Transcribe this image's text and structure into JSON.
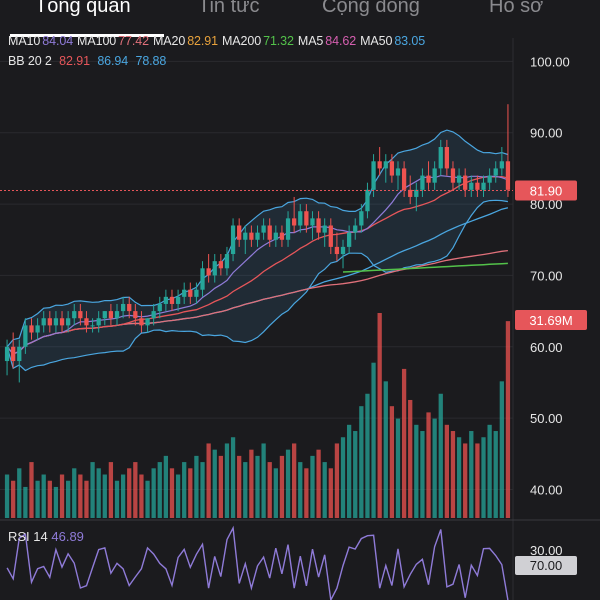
{
  "tabs": [
    {
      "label": "Tổng quan",
      "active": true
    },
    {
      "label": "Tin tức",
      "active": false
    },
    {
      "label": "Cộng đồng",
      "active": false
    },
    {
      "label": "Hồ sơ",
      "active": false
    }
  ],
  "legend": {
    "ma": [
      {
        "label": "MA10",
        "value": "84.04",
        "color": "#8f7bd8"
      },
      {
        "label": "MA100",
        "value": "77.42",
        "color": "#e0707a"
      },
      {
        "label": "MA20",
        "value": "82.91",
        "color": "#e8a23c"
      },
      {
        "label": "MA200",
        "value": "71.32",
        "color": "#53c24a"
      },
      {
        "label": "MA5",
        "value": "84.62",
        "color": "#d65fb0"
      },
      {
        "label": "MA50",
        "value": "83.05",
        "color": "#4aa6e0"
      }
    ],
    "bb": {
      "label": "BB 20 2",
      "values": [
        {
          "value": "82.91",
          "color": "#e6565a"
        },
        {
          "value": "86.94",
          "color": "#4aa6e0"
        },
        {
          "value": "78.88",
          "color": "#4aa6e0"
        }
      ]
    }
  },
  "price_axis": {
    "ticks": [
      "100.00",
      "90.00",
      "80.00",
      "70.00",
      "60.00",
      "50.00",
      "40.00"
    ]
  },
  "last_price": {
    "label": "81.90",
    "value": 81.9,
    "color": "#e6565a"
  },
  "volume_badge": {
    "label": "31.69M",
    "color": "#e6565a"
  },
  "rsi": {
    "label": "RSI 14",
    "value": "46.89",
    "value_color": "#8f7bd8",
    "axis_ticks": [
      "30.00"
    ],
    "badge": "70.00"
  },
  "colors": {
    "up": "#26a69a",
    "down": "#ef5350",
    "bg": "#1b1b1e",
    "grid": "#2a2a2e"
  },
  "chart_data": {
    "type": "candlestick",
    "ylim": [
      36,
      103
    ],
    "candles": [
      [
        58,
        61,
        56,
        60
      ],
      [
        60,
        62,
        57,
        58
      ],
      [
        58,
        61,
        55,
        60
      ],
      [
        60,
        64,
        59,
        63
      ],
      [
        63,
        64,
        61,
        62
      ],
      [
        62,
        64,
        61,
        63
      ],
      [
        63,
        65,
        62,
        64
      ],
      [
        64,
        65,
        62,
        63
      ],
      [
        63,
        65,
        62,
        64
      ],
      [
        64,
        65,
        62,
        63
      ],
      [
        63,
        65,
        62,
        64
      ],
      [
        64,
        66,
        63,
        65
      ],
      [
        65,
        66,
        63,
        64
      ],
      [
        64,
        65,
        62,
        63
      ],
      [
        63,
        64,
        62,
        63
      ],
      [
        63,
        65,
        62,
        64
      ],
      [
        64,
        65,
        63,
        65
      ],
      [
        65,
        66,
        63,
        64
      ],
      [
        64,
        66,
        63,
        65
      ],
      [
        65,
        67,
        64,
        66
      ],
      [
        66,
        67,
        64,
        65
      ],
      [
        65,
        66,
        63,
        64
      ],
      [
        64,
        65,
        62,
        63
      ],
      [
        63,
        64,
        62,
        64
      ],
      [
        64,
        66,
        63,
        65
      ],
      [
        65,
        67,
        64,
        66
      ],
      [
        66,
        68,
        65,
        67
      ],
      [
        67,
        68,
        65,
        66
      ],
      [
        66,
        68,
        65,
        67
      ],
      [
        67,
        69,
        66,
        68
      ],
      [
        68,
        69,
        66,
        67
      ],
      [
        67,
        69,
        66,
        68
      ],
      [
        68,
        72,
        67,
        71
      ],
      [
        71,
        73,
        69,
        70
      ],
      [
        70,
        73,
        69,
        72
      ],
      [
        72,
        73,
        70,
        71
      ],
      [
        71,
        74,
        70,
        73
      ],
      [
        73,
        78,
        72,
        77
      ],
      [
        77,
        78,
        74,
        75
      ],
      [
        75,
        77,
        73,
        76
      ],
      [
        76,
        77,
        74,
        75
      ],
      [
        75,
        77,
        74,
        76
      ],
      [
        76,
        78,
        75,
        77
      ],
      [
        77,
        78,
        74,
        75
      ],
      [
        75,
        77,
        74,
        76
      ],
      [
        76,
        77,
        74,
        75
      ],
      [
        75,
        79,
        74,
        78
      ],
      [
        78,
        81,
        76,
        77
      ],
      [
        77,
        80,
        76,
        79
      ],
      [
        79,
        80,
        76,
        77
      ],
      [
        77,
        79,
        75,
        78
      ],
      [
        78,
        79,
        75,
        76
      ],
      [
        76,
        78,
        74,
        77
      ],
      [
        77,
        78,
        73,
        74
      ],
      [
        74,
        76,
        72,
        73
      ],
      [
        73,
        75,
        71,
        74
      ],
      [
        74,
        77,
        73,
        76
      ],
      [
        76,
        78,
        75,
        77
      ],
      [
        77,
        80,
        76,
        79
      ],
      [
        79,
        83,
        78,
        82
      ],
      [
        82,
        87,
        81,
        86
      ],
      [
        86,
        88,
        84,
        85
      ],
      [
        85,
        87,
        83,
        86
      ],
      [
        86,
        87,
        83,
        84
      ],
      [
        84,
        86,
        82,
        85
      ],
      [
        85,
        86,
        81,
        82
      ],
      [
        82,
        84,
        80,
        81
      ],
      [
        81,
        83,
        79,
        82
      ],
      [
        82,
        85,
        81,
        84
      ],
      [
        84,
        86,
        82,
        83
      ],
      [
        83,
        86,
        82,
        85
      ],
      [
        85,
        89,
        84,
        88
      ],
      [
        88,
        89,
        84,
        85
      ],
      [
        85,
        86,
        82,
        83
      ],
      [
        83,
        85,
        82,
        84
      ],
      [
        84,
        85,
        81,
        82
      ],
      [
        82,
        84,
        81,
        83
      ],
      [
        83,
        84,
        81,
        82
      ],
      [
        82,
        84,
        81,
        83
      ],
      [
        83,
        85,
        82,
        84
      ],
      [
        84,
        86,
        83,
        85
      ],
      [
        85,
        88,
        84,
        86
      ],
      [
        86,
        94,
        81,
        82
      ]
    ],
    "volumes": [
      7,
      6,
      8,
      5,
      9,
      6,
      7,
      6,
      5,
      7,
      6,
      8,
      7,
      6,
      9,
      8,
      7,
      9,
      6,
      7,
      8,
      9,
      7,
      6,
      8,
      9,
      10,
      8,
      7,
      9,
      8,
      10,
      9,
      12,
      11,
      10,
      12,
      13,
      10,
      9,
      11,
      10,
      12,
      9,
      8,
      10,
      11,
      12,
      9,
      8,
      10,
      11,
      9,
      8,
      12,
      13,
      15,
      14,
      18,
      20,
      25,
      33,
      22,
      18,
      16,
      24,
      19,
      15,
      14,
      17,
      16,
      20,
      15,
      14,
      13,
      12,
      14,
      12,
      13,
      15,
      14,
      22,
      31.69
    ]
  }
}
